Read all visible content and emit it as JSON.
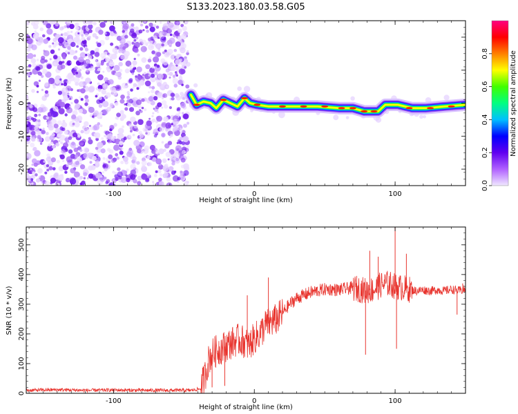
{
  "figure": {
    "title": "S133.2023.180.03.58.G05"
  },
  "chart_data": [
    {
      "type": "heatmap",
      "title": "S133.2023.180.03.58.G05",
      "xlabel": "Height of straight line (km)",
      "ylabel": "Frequency (Hz)",
      "xlim": [
        -162,
        150
      ],
      "ylim": [
        -25,
        25
      ],
      "xticks": [
        -100,
        0,
        100
      ],
      "yticks": [
        -20,
        -10,
        0,
        10,
        20
      ],
      "grid": false,
      "noise_region_x": [
        -162,
        -47
      ],
      "ridge": [
        {
          "x": -45,
          "y": 2.5
        },
        {
          "x": -41,
          "y": -0.5
        },
        {
          "x": -36,
          "y": 0.5
        },
        {
          "x": -31,
          "y": 0
        },
        {
          "x": -27,
          "y": -1.5
        },
        {
          "x": -22,
          "y": 1
        },
        {
          "x": -17,
          "y": 0
        },
        {
          "x": -12,
          "y": -1
        },
        {
          "x": -7,
          "y": 1.5
        },
        {
          "x": -3,
          "y": 0
        },
        {
          "x": 2,
          "y": -0.5
        },
        {
          "x": 10,
          "y": -1
        },
        {
          "x": 20,
          "y": -1
        },
        {
          "x": 30,
          "y": -1
        },
        {
          "x": 45,
          "y": -1
        },
        {
          "x": 60,
          "y": -1.5
        },
        {
          "x": 70,
          "y": -1.5
        },
        {
          "x": 78,
          "y": -2.5
        },
        {
          "x": 88,
          "y": -2.5
        },
        {
          "x": 93,
          "y": -0.5
        },
        {
          "x": 102,
          "y": -0.5
        },
        {
          "x": 112,
          "y": -1.5
        },
        {
          "x": 122,
          "y": -1.5
        },
        {
          "x": 135,
          "y": -1
        },
        {
          "x": 150,
          "y": -0.5
        }
      ],
      "colorbar": {
        "label": "Normalized spectral amplitude",
        "range": [
          0,
          1
        ],
        "ticks": [
          "0.0",
          "0.2",
          "0.4",
          "0.6",
          "0.8"
        ],
        "colors": [
          "#f0e8ff",
          "#b060ff",
          "#6000f0",
          "#0000ff",
          "#00c0ff",
          "#00ff80",
          "#40ff00",
          "#ffff00",
          "#ff8000",
          "#ff0000",
          "#ff0080"
        ]
      }
    },
    {
      "type": "line",
      "xlabel": "Height of straight line (km)",
      "ylabel": "SNR (10 * v/v)",
      "xlim": [
        -162,
        150
      ],
      "ylim": [
        0,
        560
      ],
      "xticks": [
        -100,
        0,
        100
      ],
      "yticks": [
        0,
        100,
        200,
        300,
        400,
        500
      ],
      "grid": false,
      "color": "#e8342e",
      "series": [
        {
          "x": [
            -162,
            -140,
            -120,
            -100,
            -80,
            -60,
            -45,
            -38,
            -35,
            -32,
            -28,
            -24,
            -20,
            -16,
            -12,
            -8,
            -4,
            0,
            4,
            8,
            12,
            16,
            20,
            25,
            30,
            35,
            40,
            45,
            50,
            55,
            60,
            65,
            70,
            75,
            80,
            85,
            90,
            95,
            100,
            105,
            110,
            115,
            120,
            125,
            130,
            135,
            140,
            145,
            150
          ],
          "values": [
            10,
            12,
            10,
            11,
            10,
            10,
            10,
            15,
            60,
            120,
            140,
            150,
            160,
            170,
            180,
            175,
            160,
            185,
            200,
            230,
            240,
            250,
            270,
            300,
            320,
            330,
            340,
            345,
            350,
            350,
            348,
            352,
            355,
            350,
            345,
            350,
            365,
            370,
            360,
            355,
            350,
            345,
            348,
            345,
            348,
            345,
            350,
            345,
            350
          ]
        }
      ],
      "spikes": [
        {
          "x": -30,
          "y": 20
        },
        {
          "x": -21,
          "y": 25
        },
        {
          "x": -5,
          "y": 330
        },
        {
          "x": 10,
          "y": 390
        },
        {
          "x": 79,
          "y": 130
        },
        {
          "x": 82,
          "y": 480
        },
        {
          "x": 88,
          "y": 460
        },
        {
          "x": 100,
          "y": 560
        },
        {
          "x": 101,
          "y": 150
        },
        {
          "x": 108,
          "y": 470
        },
        {
          "x": 144,
          "y": 265
        },
        {
          "x": 148,
          "y": 370
        }
      ]
    }
  ]
}
